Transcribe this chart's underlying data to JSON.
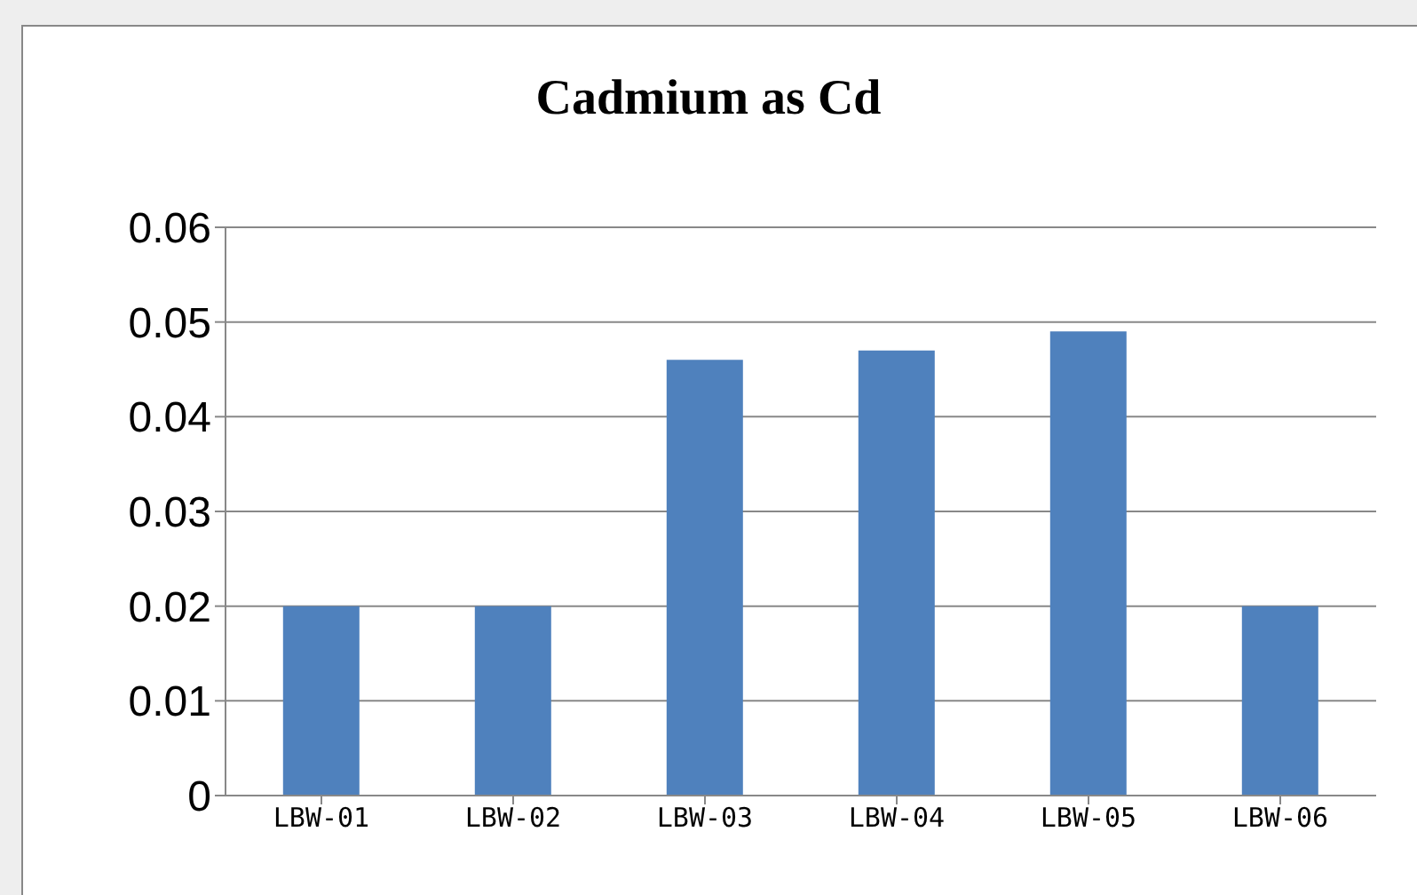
{
  "chart_data": {
    "type": "bar",
    "title": "Cadmium  as Cd",
    "categories": [
      "LBW-01",
      "LBW-02",
      "LBW-03",
      "LBW-04",
      "LBW-05",
      "LBW-06"
    ],
    "values": [
      0.02,
      0.02,
      0.046,
      0.047,
      0.049,
      0.02
    ],
    "color": "#4f81bd",
    "ylim": [
      0,
      0.06
    ],
    "yticks": [
      0,
      0.01,
      0.02,
      0.03,
      0.04,
      0.05,
      0.06
    ],
    "grid": "y"
  }
}
